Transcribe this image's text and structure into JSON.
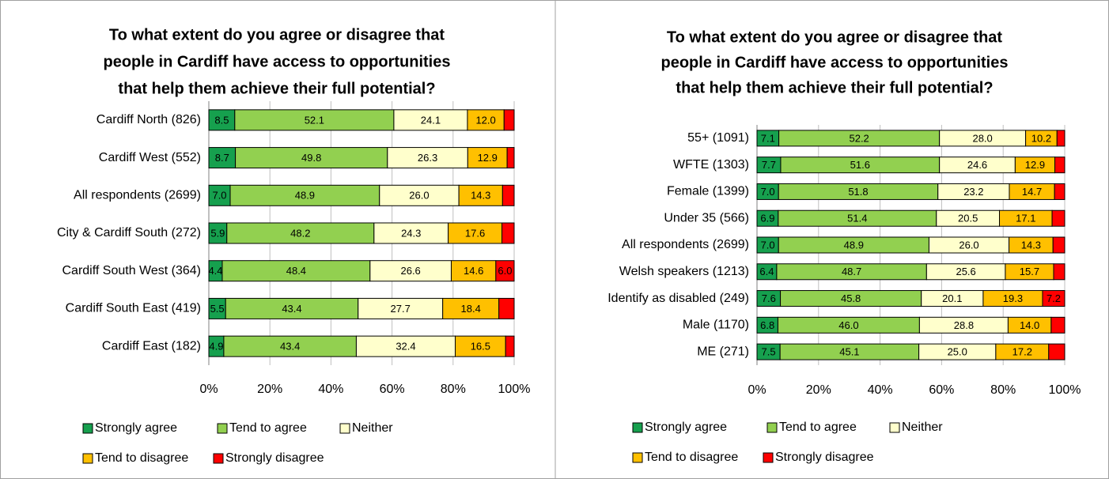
{
  "chart_data": [
    {
      "type": "bar",
      "orientation": "horizontal",
      "stacked": true,
      "title": [
        "To what extent do you agree or disagree that",
        "people in Cardiff have access to opportunities",
        "that help them achieve their full potential?"
      ],
      "categories": [
        "Cardiff North (826)",
        "Cardiff West (552)",
        "All respondents (2699)",
        "City & Cardiff South (272)",
        "Cardiff South West (364)",
        "Cardiff South East (419)",
        "Cardiff East (182)"
      ],
      "series": [
        {
          "name": "Strongly agree",
          "color": "#16a04e",
          "values": [
            8.5,
            8.7,
            7.0,
            5.9,
            4.4,
            5.5,
            4.9
          ],
          "value_labels": [
            "8.5",
            "8.7",
            "7.0",
            "5.9",
            "4.4",
            "5.5",
            "4.9"
          ]
        },
        {
          "name": "Tend to agree",
          "color": "#92d050",
          "values": [
            52.1,
            49.8,
            48.9,
            48.2,
            48.4,
            43.4,
            43.4
          ],
          "value_labels": [
            "52.1",
            "49.8",
            "48.9",
            "48.2",
            "48.4",
            "43.4",
            "43.4"
          ]
        },
        {
          "name": "Neither",
          "color": "#ffffcc",
          "values": [
            24.1,
            26.3,
            26.0,
            24.3,
            26.6,
            27.7,
            32.4
          ],
          "value_labels": [
            "24.1",
            "26.3",
            "26.0",
            "24.3",
            "26.6",
            "27.7",
            "32.4"
          ]
        },
        {
          "name": "Tend to disagree",
          "color": "#ffc000",
          "values": [
            12.0,
            12.9,
            14.3,
            17.6,
            14.6,
            18.4,
            16.5
          ],
          "value_labels": [
            "12.0",
            "12.9",
            "14.3",
            "17.6",
            "14.6",
            "18.4",
            "16.5"
          ]
        },
        {
          "name": "Strongly disagree",
          "color": "#ff0000",
          "values": [
            3.3,
            2.3,
            3.8,
            4.0,
            6.0,
            5.0,
            2.8
          ],
          "value_labels": [
            null,
            null,
            null,
            null,
            "6.0",
            null,
            null
          ]
        }
      ],
      "xlim": [
        0,
        100
      ],
      "xticks": [
        {
          "value": 0,
          "label": "0%"
        },
        {
          "value": 20,
          "label": "20%"
        },
        {
          "value": 40,
          "label": "40%"
        },
        {
          "value": 60,
          "label": "60%"
        },
        {
          "value": 80,
          "label": "80%"
        },
        {
          "value": 100,
          "label": "100%"
        }
      ],
      "grid": true,
      "legend": "bottom"
    },
    {
      "type": "bar",
      "orientation": "horizontal",
      "stacked": true,
      "title": [
        "To what extent do you agree or disagree that",
        "people in Cardiff have access to opportunities",
        "that help them achieve their full potential?"
      ],
      "categories": [
        "55+ (1091)",
        "WFTE (1303)",
        "Female (1399)",
        "Under 35 (566)",
        "All respondents (2699)",
        "Welsh speakers (1213)",
        "Identify as disabled (249)",
        "Male (1170)",
        "ME (271)"
      ],
      "series": [
        {
          "name": "Strongly agree",
          "color": "#16a04e",
          "values": [
            7.1,
            7.7,
            7.0,
            6.9,
            7.0,
            6.4,
            7.6,
            6.8,
            7.5
          ],
          "value_labels": [
            "7.1",
            "7.7",
            "7.0",
            "6.9",
            "7.0",
            "6.4",
            "7.6",
            "6.8",
            "7.5"
          ]
        },
        {
          "name": "Tend to agree",
          "color": "#92d050",
          "values": [
            52.2,
            51.6,
            51.8,
            51.4,
            48.9,
            48.7,
            45.8,
            46.0,
            45.1
          ],
          "value_labels": [
            "52.2",
            "51.6",
            "51.8",
            "51.4",
            "48.9",
            "48.7",
            "45.8",
            "46.0",
            "45.1"
          ]
        },
        {
          "name": "Neither",
          "color": "#ffffcc",
          "values": [
            28.0,
            24.6,
            23.2,
            20.5,
            26.0,
            25.6,
            20.1,
            28.8,
            25.0
          ],
          "value_labels": [
            "28.0",
            "24.6",
            "23.2",
            "20.5",
            "26.0",
            "25.6",
            "20.1",
            "28.8",
            "25.0"
          ]
        },
        {
          "name": "Tend to disagree",
          "color": "#ffc000",
          "values": [
            10.2,
            12.9,
            14.7,
            17.1,
            14.3,
            15.7,
            19.3,
            14.0,
            17.2
          ],
          "value_labels": [
            "10.2",
            "12.9",
            "14.7",
            "17.1",
            "14.3",
            "15.7",
            "19.3",
            "14.0",
            "17.2"
          ]
        },
        {
          "name": "Strongly disagree",
          "color": "#ff0000",
          "values": [
            2.5,
            3.2,
            3.3,
            4.1,
            3.8,
            3.6,
            7.2,
            4.4,
            5.2
          ],
          "value_labels": [
            null,
            null,
            null,
            null,
            null,
            null,
            "7.2",
            null,
            null
          ]
        }
      ],
      "xlim": [
        0,
        100
      ],
      "xticks": [
        {
          "value": 0,
          "label": "0%"
        },
        {
          "value": 20,
          "label": "20%"
        },
        {
          "value": 40,
          "label": "40%"
        },
        {
          "value": 60,
          "label": "60%"
        },
        {
          "value": 80,
          "label": "80%"
        },
        {
          "value": 100,
          "label": "100%"
        }
      ],
      "grid": true,
      "legend": "bottom"
    }
  ]
}
